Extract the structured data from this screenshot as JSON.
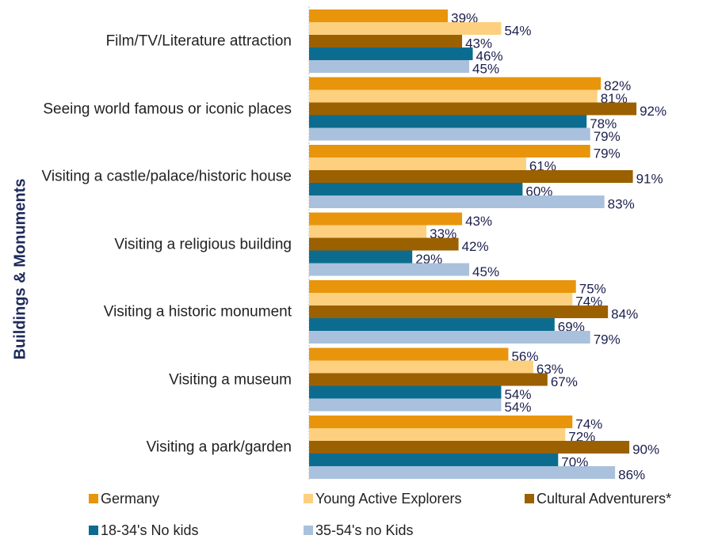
{
  "chart_data": {
    "type": "bar",
    "orientation": "horizontal",
    "y_axis_label": "Buildings & Monuments",
    "categories": [
      "Film/TV/Literature attraction",
      "Seeing world famous or iconic places",
      "Visiting a castle/palace/historic house",
      "Visiting a religious building",
      "Visiting a historic monument",
      "Visiting a museum",
      "Visiting a park/garden"
    ],
    "xlim": [
      0,
      100
    ],
    "series": [
      {
        "name": "Germany",
        "color": "#e8950c",
        "values": [
          39,
          82,
          79,
          43,
          75,
          56,
          74
        ],
        "value_labels": [
          "39%",
          "82%",
          "79%",
          "43%",
          "75%",
          "56%",
          "74%"
        ]
      },
      {
        "name": "Young Active Explorers",
        "color": "#fdd07f",
        "values": [
          54,
          81,
          61,
          33,
          74,
          63,
          72
        ],
        "value_labels": [
          "54%",
          "81%",
          "61%",
          "33%",
          "74%",
          "63%",
          "72%"
        ]
      },
      {
        "name": "Cultural Adventurers*",
        "color": "#9b6000",
        "values": [
          43,
          92,
          91,
          42,
          84,
          67,
          90
        ],
        "value_labels": [
          "43%",
          "92%",
          "91%",
          "42%",
          "84%",
          "67%",
          "90%"
        ]
      },
      {
        "name": "18-34's No kids",
        "color": "#0c6c8f",
        "values": [
          46,
          78,
          60,
          29,
          69,
          54,
          70
        ],
        "value_labels": [
          "46%",
          "78%",
          "60%",
          "29%",
          "69%",
          "54%",
          "70%"
        ]
      },
      {
        "name": "35-54's no Kids",
        "color": "#a9c1dc",
        "values": [
          45,
          79,
          83,
          45,
          79,
          54,
          86
        ],
        "value_labels": [
          "45%",
          "79%",
          "83%",
          "45%",
          "79%",
          "54%",
          "86%"
        ]
      }
    ],
    "legend": "bottom"
  }
}
